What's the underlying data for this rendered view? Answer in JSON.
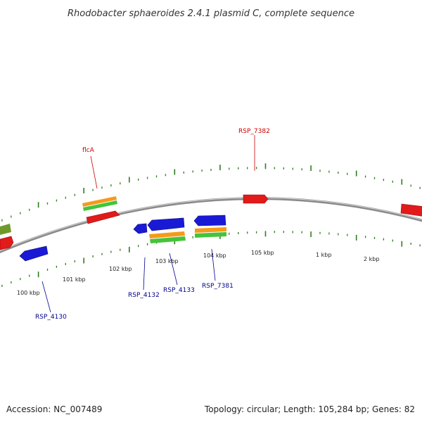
{
  "title": "Rhodobacter sphaeroides 2.4.1 plasmid C, complete sequence",
  "footer": {
    "accession": "Accession: NC_007489",
    "summary": "Topology: circular; Length: 105,284 bp; Genes: 82"
  },
  "colors": {
    "backbone": "#888888",
    "tick": "#2e7d1e",
    "gene_red": "#e21a1a",
    "gene_blue": "#1a1ad6",
    "gene_orange": "#f59a1a",
    "gene_green": "#44c43a",
    "gene_olive": "#6f9a2a",
    "label_red": "#cc0000",
    "label_blue": "#00008b"
  },
  "scale_labels": [
    "100 kbp",
    "101 kbp",
    "102 kbp",
    "103 kbp",
    "104 kbp",
    "105 kbp",
    "1 kbp",
    "2 kbp"
  ],
  "genes": [
    {
      "label": "flcA",
      "strand": "+",
      "color": "red"
    },
    {
      "label": "RSP_7382",
      "strand": "+",
      "color": "red"
    },
    {
      "label": "RSP_4130",
      "strand": "-",
      "color": "blue"
    },
    {
      "label": "RSP_4132",
      "strand": "-",
      "color": "blue"
    },
    {
      "label": "RSP_4133",
      "strand": "-",
      "color": "blue"
    },
    {
      "label": "RSP_7381",
      "strand": "-",
      "color": "blue"
    }
  ]
}
